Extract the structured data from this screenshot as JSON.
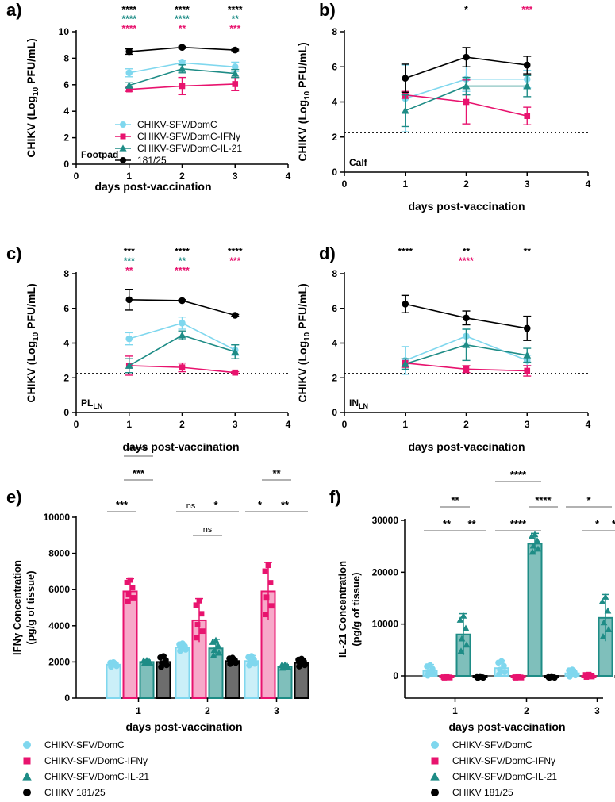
{
  "colors": {
    "domc": "#7FD7EE",
    "ifng": "#E8136E",
    "il21": "#1E8C86",
    "wt": "#000000"
  },
  "chart_data": [
    {
      "id": "a",
      "panel_label": "a)",
      "type": "line",
      "region_label": "Footpad",
      "xlabel": "days post-vaccination",
      "ylabel": "CHIKV (Log10 PFU/mL)",
      "xlim": [
        0,
        4
      ],
      "ylim": [
        0,
        10
      ],
      "xticks": [
        "0",
        "1",
        "2",
        "3",
        "4"
      ],
      "yticks": [
        "0",
        "2",
        "4",
        "6",
        "8",
        "10"
      ],
      "x": [
        1,
        2,
        3
      ],
      "series": [
        {
          "name": "CHIKV-SFV/DomC",
          "color_key": "domc",
          "marker": "circle",
          "values": [
            6.9,
            7.65,
            7.35
          ],
          "err": [
            0.3,
            0.15,
            0.35
          ]
        },
        {
          "name": "CHIKV-SFV/DomC-IFNγ",
          "color_key": "ifng",
          "marker": "square",
          "values": [
            5.65,
            5.9,
            6.05
          ],
          "err": [
            0.15,
            0.65,
            0.5
          ]
        },
        {
          "name": "CHIKV-SFV/DomC-IL-21",
          "color_key": "il21",
          "marker": "triangle",
          "values": [
            5.95,
            7.2,
            6.85
          ],
          "err": [
            0.2,
            0.3,
            0.3
          ]
        },
        {
          "name": "181/25",
          "color_key": "wt",
          "marker": "circle",
          "values": [
            8.5,
            8.82,
            8.62
          ],
          "err": [
            0.2,
            0.08,
            0.05
          ]
        }
      ],
      "legend": [
        "CHIKV-SFV/DomC",
        "CHIKV-SFV/DomC-IFNγ",
        "CHIKV-SFV/DomC-IL-21",
        "181/25"
      ],
      "annotations": [
        {
          "x": 1,
          "rows": [
            [
              "****",
              "wt"
            ],
            [
              "****",
              "il21"
            ],
            [
              "****",
              "ifng"
            ]
          ]
        },
        {
          "x": 2,
          "rows": [
            [
              "****",
              "wt"
            ],
            [
              "****",
              "il21"
            ],
            [
              "**",
              "ifng"
            ]
          ]
        },
        {
          "x": 3,
          "rows": [
            [
              "****",
              "wt"
            ],
            [
              "**",
              "il21"
            ],
            [
              "***",
              "ifng"
            ]
          ]
        }
      ]
    },
    {
      "id": "b",
      "panel_label": "b)",
      "type": "line",
      "region_label": "Calf",
      "xlabel": "days post-vaccination",
      "ylabel": "CHIKV (Log10 PFU/mL)",
      "xlim": [
        0,
        4
      ],
      "ylim": [
        0,
        8
      ],
      "lod": 2.25,
      "xticks": [
        "0",
        "1",
        "2",
        "3",
        "4"
      ],
      "yticks": [
        "0",
        "2",
        "4",
        "6",
        "8"
      ],
      "x": [
        1,
        2,
        3
      ],
      "series": [
        {
          "name": "CHIKV-SFV/DomC",
          "color_key": "domc",
          "marker": "circle",
          "values": [
            4.2,
            5.3,
            5.3
          ],
          "err": [
            1.9,
            0.7,
            0.5
          ]
        },
        {
          "name": "CHIKV-SFV/DomC-IFNγ",
          "color_key": "ifng",
          "marker": "square",
          "values": [
            4.4,
            4.0,
            3.2
          ],
          "err": [
            0.2,
            1.25,
            0.5
          ]
        },
        {
          "name": "CHIKV-SFV/DomC-IL-21",
          "color_key": "il21",
          "marker": "triangle",
          "values": [
            3.5,
            4.9,
            4.9
          ],
          "err": [
            0.9,
            0.5,
            0.6
          ]
        },
        {
          "name": "181/25",
          "color_key": "wt",
          "marker": "circle",
          "values": [
            5.35,
            6.55,
            6.1
          ],
          "err": [
            0.8,
            0.55,
            0.5
          ]
        }
      ],
      "annotations": [
        {
          "x": 2,
          "rows": [
            [
              "*",
              "wt"
            ]
          ]
        },
        {
          "x": 3,
          "rows": [
            [
              "***",
              "ifng"
            ]
          ]
        }
      ]
    },
    {
      "id": "c",
      "panel_label": "c)",
      "type": "line",
      "region_label": "PL",
      "region_sub": "LN",
      "xlabel": "days post-vaccination",
      "ylabel": "CHIKV (Log10 PFU/mL)",
      "xlim": [
        0,
        4
      ],
      "ylim": [
        0,
        8
      ],
      "lod": 2.25,
      "xticks": [
        "0",
        "1",
        "2",
        "3",
        "4"
      ],
      "yticks": [
        "0",
        "2",
        "4",
        "6",
        "8"
      ],
      "x": [
        1,
        2,
        3
      ],
      "series": [
        {
          "name": "CHIKV-SFV/DomC",
          "color_key": "domc",
          "marker": "circle",
          "values": [
            4.25,
            5.15,
            3.6
          ],
          "err": [
            0.35,
            0.35,
            0.3
          ]
        },
        {
          "name": "CHIKV-SFV/DomC-IFNγ",
          "color_key": "ifng",
          "marker": "square",
          "values": [
            2.7,
            2.6,
            2.3
          ],
          "err": [
            0.55,
            0.25,
            0.05
          ]
        },
        {
          "name": "CHIKV-SFV/DomC-IL-21",
          "color_key": "il21",
          "marker": "triangle",
          "values": [
            2.7,
            4.45,
            3.5
          ],
          "err": [
            0.4,
            0.25,
            0.4
          ]
        },
        {
          "name": "181/25",
          "color_key": "wt",
          "marker": "circle",
          "values": [
            6.5,
            6.45,
            5.6
          ],
          "err": [
            0.6,
            0.05,
            0.05
          ]
        }
      ],
      "annotations": [
        {
          "x": 1,
          "rows": [
            [
              "***",
              "wt"
            ],
            [
              "***",
              "il21"
            ],
            [
              "**",
              "ifng"
            ]
          ]
        },
        {
          "x": 2,
          "rows": [
            [
              "****",
              "wt"
            ],
            [
              "**",
              "il21"
            ],
            [
              "****",
              "ifng"
            ]
          ]
        },
        {
          "x": 3,
          "rows": [
            [
              "****",
              "wt"
            ],
            [
              "***",
              "ifng"
            ]
          ]
        }
      ]
    },
    {
      "id": "d",
      "panel_label": "d)",
      "type": "line",
      "region_label": "IN",
      "region_sub": "LN",
      "xlabel": "days post-vaccination",
      "ylabel": "CHIKV (Log10 PFU/mL)",
      "xlim": [
        0,
        4
      ],
      "ylim": [
        0,
        8
      ],
      "lod": 2.25,
      "xticks": [
        "0",
        "1",
        "2",
        "3",
        "4"
      ],
      "yticks": [
        "0",
        "2",
        "4",
        "6",
        "8"
      ],
      "x": [
        1,
        2,
        3
      ],
      "series": [
        {
          "name": "CHIKV-SFV/DomC",
          "color_key": "domc",
          "marker": "circle",
          "values": [
            3.0,
            4.4,
            3.0
          ],
          "err": [
            0.8,
            0.4,
            0.3
          ]
        },
        {
          "name": "CHIKV-SFV/DomC-IFNγ",
          "color_key": "ifng",
          "marker": "square",
          "values": [
            2.85,
            2.5,
            2.4
          ],
          "err": [
            0.25,
            0.2,
            0.3
          ]
        },
        {
          "name": "CHIKV-SFV/DomC-IL-21",
          "color_key": "il21",
          "marker": "triangle",
          "values": [
            2.8,
            3.9,
            3.3
          ],
          "err": [
            0.3,
            0.9,
            0.4
          ]
        },
        {
          "name": "181/25",
          "color_key": "wt",
          "marker": "circle",
          "values": [
            6.25,
            5.45,
            4.85
          ],
          "err": [
            0.5,
            0.4,
            0.7
          ]
        }
      ],
      "annotations": [
        {
          "x": 1,
          "rows": [
            [
              "****",
              "wt"
            ]
          ]
        },
        {
          "x": 2,
          "rows": [
            [
              "**",
              "wt"
            ],
            [
              "****",
              "ifng"
            ]
          ]
        },
        {
          "x": 3,
          "rows": [
            [
              "**",
              "wt"
            ]
          ]
        }
      ]
    },
    {
      "id": "e",
      "panel_label": "e)",
      "type": "bar",
      "xlabel": "days post-vaccination",
      "ylabel": "IFNγ Concentration",
      "ylabel2": "(pg/g of tissue)",
      "ylim": [
        0,
        10000
      ],
      "yticks": [
        "0",
        "2000",
        "4000",
        "6000",
        "8000",
        "10000"
      ],
      "categories": [
        "1",
        "2",
        "3"
      ],
      "series": [
        {
          "name": "CHIKV-SFV/DomC",
          "color_key": "domc",
          "marker": "circle",
          "values": [
            1850,
            2800,
            2050
          ],
          "err": [
            150,
            250,
            300
          ]
        },
        {
          "name": "CHIKV-SFV/DomC-IFNγ",
          "color_key": "ifng",
          "marker": "square",
          "values": [
            5900,
            4300,
            5900
          ],
          "err": [
            700,
            1200,
            1600
          ]
        },
        {
          "name": "CHIKV-SFV/DomC-IL-21",
          "color_key": "il21",
          "marker": "triangle",
          "values": [
            2000,
            2750,
            1750
          ],
          "err": [
            100,
            500,
            100
          ]
        },
        {
          "name": "CHIKV 181/25",
          "color_key": "wt",
          "marker": "circle",
          "values": [
            2000,
            2050,
            1950
          ],
          "err": [
            350,
            200,
            250
          ]
        }
      ],
      "legend": [
        "CHIKV-SFV/DomC",
        "CHIKV-SFV/DomC-IFNγ",
        "CHIKV-SFV/DomC-IL-21",
        "CHIKV 181/25"
      ],
      "brackets": [
        {
          "day": 0,
          "from": 1,
          "to": 2,
          "label": "****",
          "tier": 2
        },
        {
          "day": 0,
          "from": 1,
          "to": 2,
          "label": "***",
          "tier": 1
        },
        {
          "day": 0,
          "from": 0,
          "to": 1,
          "label": "***",
          "tier": 0
        },
        {
          "day": 1,
          "from": 0,
          "to": 1,
          "label": "ns",
          "tier": 0
        },
        {
          "day": 1,
          "from": 1,
          "to": 3,
          "label": "*",
          "tier": 0
        },
        {
          "day": 1,
          "from": 1,
          "to": 2,
          "label": "ns",
          "tier": -1
        },
        {
          "day": 2,
          "from": 1,
          "to": 2,
          "label": "**",
          "tier": 1
        },
        {
          "day": 2,
          "from": 0,
          "to": 1,
          "label": "*",
          "tier": 0
        },
        {
          "day": 2,
          "from": 1,
          "to": 3,
          "label": "**",
          "tier": 0
        }
      ]
    },
    {
      "id": "f",
      "panel_label": "f)",
      "type": "bar",
      "xlabel": "days post-vaccination",
      "ylabel": "IL-21 Concentration",
      "ylabel2": "(pg/g of tissue)",
      "ylim": [
        0,
        30000
      ],
      "yticks": [
        "0",
        "10000",
        "20000",
        "30000"
      ],
      "categories": [
        "1",
        "2",
        "3"
      ],
      "series": [
        {
          "name": "CHIKV-SFV/DomC",
          "color_key": "domc",
          "marker": "circle",
          "values": [
            1000,
            1500,
            500
          ],
          "err": [
            1200,
            1500,
            800
          ]
        },
        {
          "name": "CHIKV-SFV/DomC-IFNγ",
          "color_key": "ifng",
          "marker": "square",
          "values": [
            -300,
            -300,
            0
          ],
          "err": [
            100,
            100,
            300
          ]
        },
        {
          "name": "CHIKV-SFV/DomC-IL-21",
          "color_key": "il21",
          "marker": "triangle",
          "values": [
            8000,
            25500,
            11200
          ],
          "err": [
            4000,
            2000,
            4500
          ]
        },
        {
          "name": "CHIKV 181/25",
          "color_key": "wt",
          "marker": "circle",
          "values": [
            -300,
            -300,
            -300
          ],
          "err": [
            100,
            100,
            100
          ]
        }
      ],
      "legend": [
        "CHIKV-SFV/DomC",
        "CHIKV-SFV/DomC-IFNγ",
        "CHIKV-SFV/DomC-IL-21",
        "CHIKV 181/25"
      ],
      "brackets": [
        {
          "day": 0,
          "from": 1,
          "to": 2,
          "label": "**",
          "tier": 1
        },
        {
          "day": 0,
          "from": 0,
          "to": 2,
          "label": "**",
          "tier": 0
        },
        {
          "day": 0,
          "from": 2,
          "to": 3,
          "label": "**",
          "tier": 0
        },
        {
          "day": 1,
          "from": 0,
          "to": 2,
          "label": "****",
          "tier": 2
        },
        {
          "day": 1,
          "from": 2,
          "to": 3,
          "label": "****",
          "tier": 1
        },
        {
          "day": 1,
          "from": 0,
          "to": 2,
          "label": "****",
          "tier": 0
        },
        {
          "day": 2,
          "from": 0,
          "to": 2,
          "label": "*",
          "tier": 1
        },
        {
          "day": 2,
          "from": 1,
          "to": 2,
          "label": "*",
          "tier": 0
        },
        {
          "day": 2,
          "from": 2,
          "to": 3,
          "label": "*",
          "tier": 0
        }
      ]
    }
  ]
}
